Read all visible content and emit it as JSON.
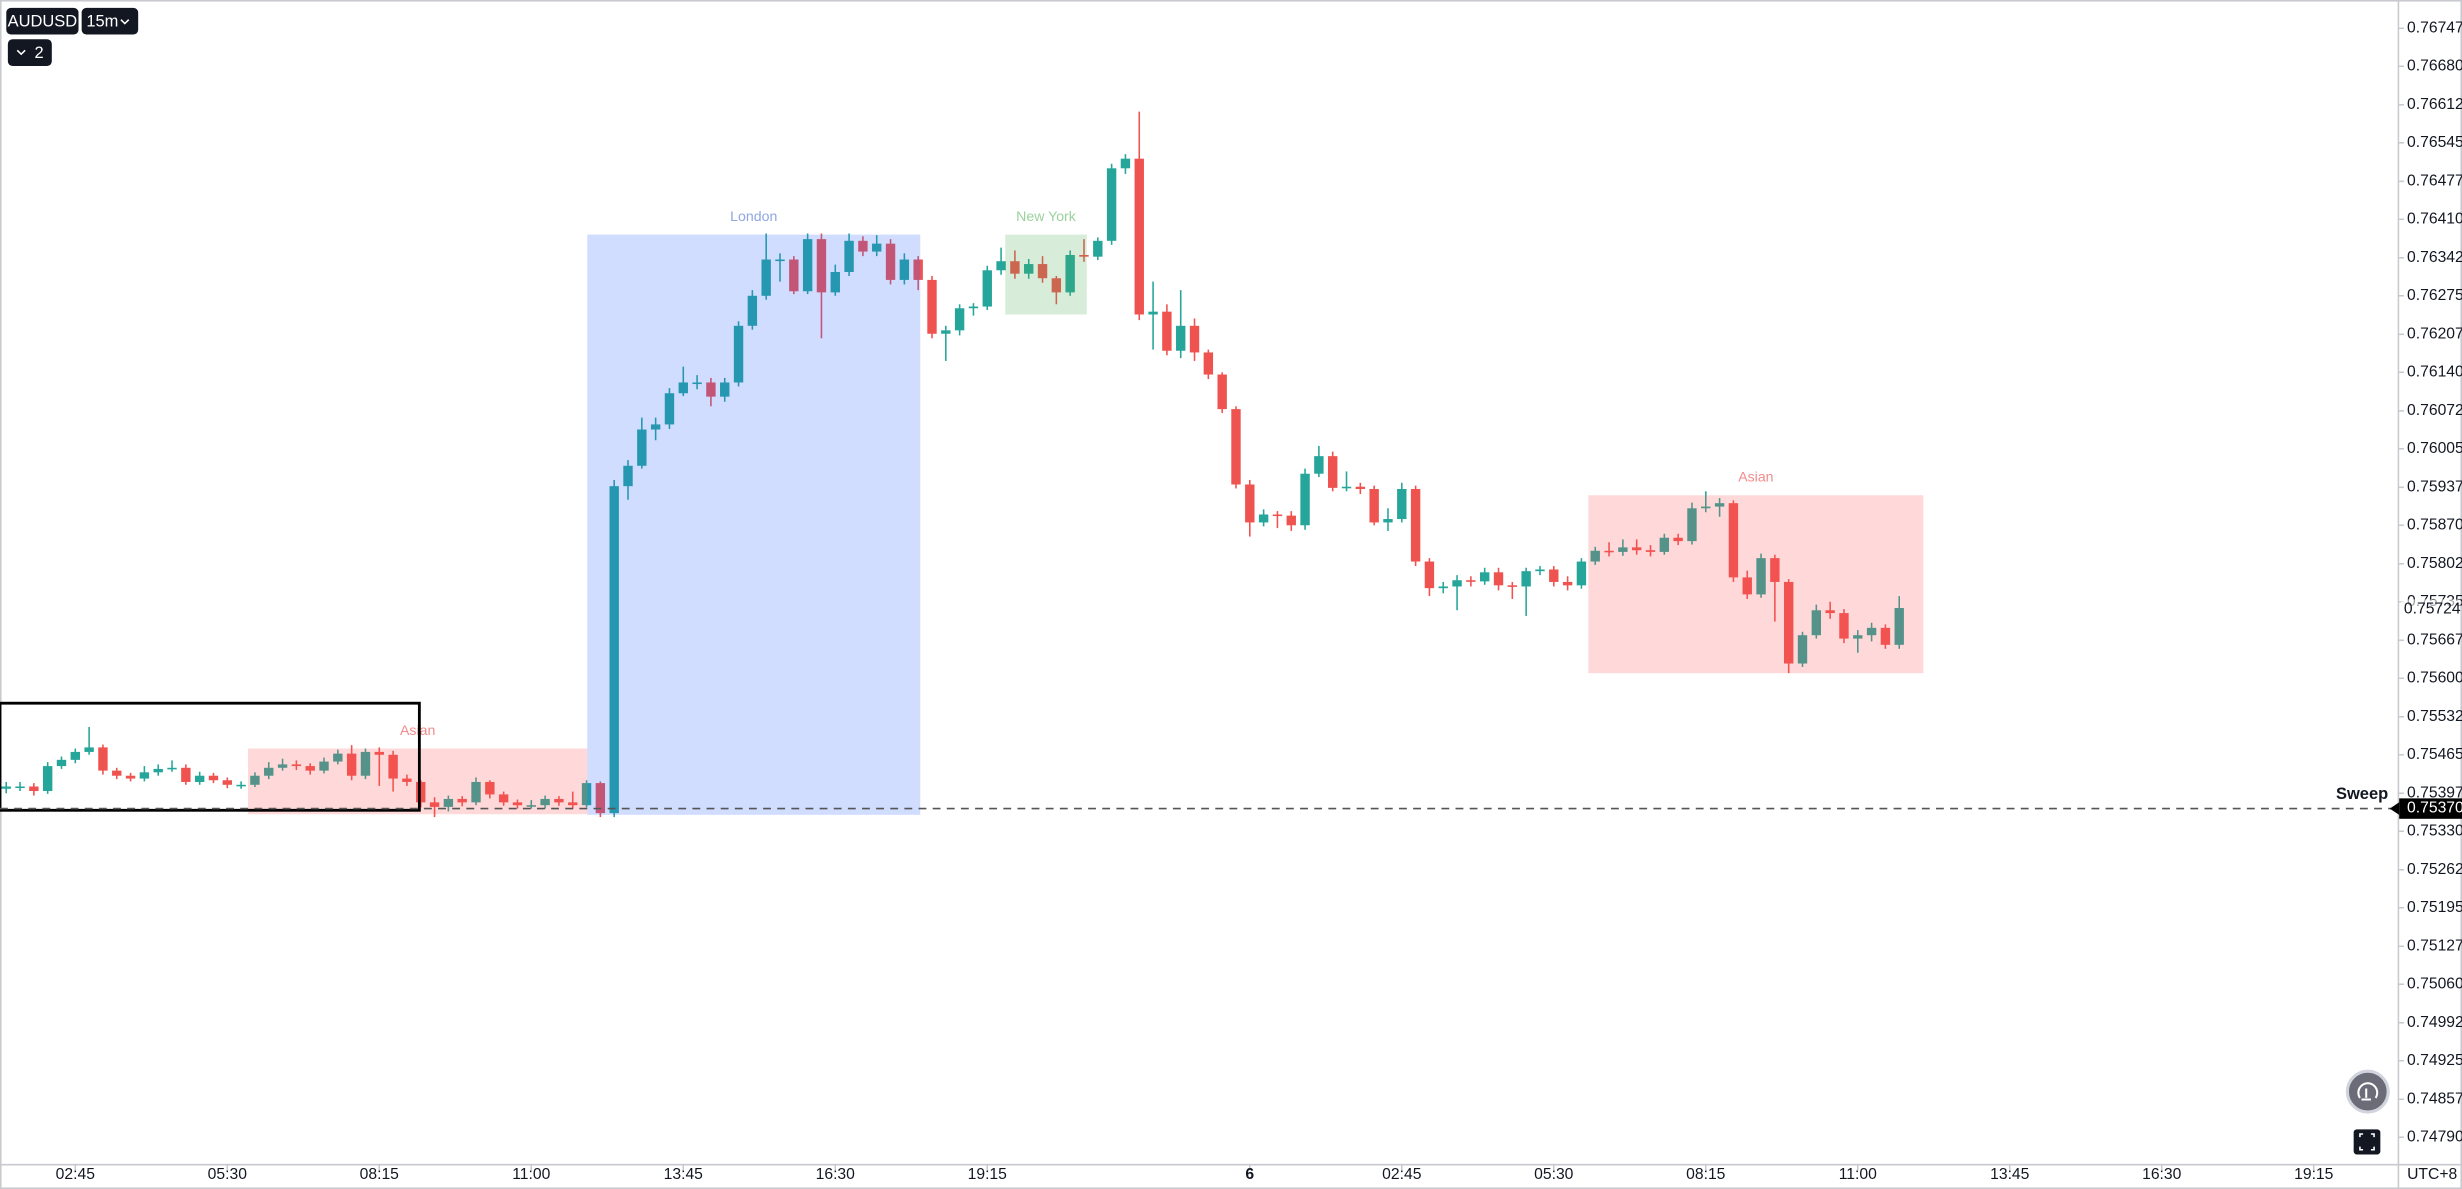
{
  "toolbar": {
    "symbol": "AUDUSD",
    "interval": "15m",
    "indicators": 2
  },
  "chart_data": {
    "type": "candlestick",
    "up_color": "#26a69a",
    "down_color": "#ef5350",
    "xlim": [
      -0.45,
      173.07
    ],
    "ylim": [
      0.74743,
      0.76797
    ],
    "xticks": [
      {
        "value": 5,
        "label": "02:45"
      },
      {
        "value": 16,
        "label": "05:30"
      },
      {
        "value": 27,
        "label": "08:15"
      },
      {
        "value": 38,
        "label": "11:00"
      },
      {
        "value": 49,
        "label": "13:45"
      },
      {
        "value": 60,
        "label": "16:30"
      },
      {
        "value": 71,
        "label": "19:15"
      },
      {
        "value": 90,
        "label": "6"
      },
      {
        "value": 101,
        "label": "02:45"
      },
      {
        "value": 112,
        "label": "05:30"
      },
      {
        "value": 123,
        "label": "08:15"
      },
      {
        "value": 134,
        "label": "11:00"
      },
      {
        "value": 145,
        "label": "13:45"
      },
      {
        "value": 156,
        "label": "16:30"
      },
      {
        "value": 167,
        "label": "19:15"
      }
    ],
    "yticks": [
      0.76747,
      {
        "value": 0.7668,
        "label": "0.76680"
      },
      0.76612,
      0.76545,
      0.76477,
      {
        "value": 0.7641,
        "label": "0.76410"
      },
      0.76342,
      0.76275,
      0.76207,
      {
        "value": 0.7614,
        "label": "0.76140"
      },
      0.76072,
      0.76005,
      0.75937,
      {
        "value": 0.7587,
        "label": "0.75870"
      },
      0.75802,
      0.75735,
      0.75667,
      {
        "value": 0.756,
        "label": "0.75600"
      },
      0.75532,
      0.75465,
      0.75397,
      {
        "value": 0.7533,
        "label": "0.75330"
      },
      0.75262,
      0.75195,
      0.75127,
      {
        "value": 0.7506,
        "label": "0.75060"
      },
      0.74992,
      0.74925,
      0.74857,
      {
        "value": 0.7479,
        "label": "0.74790"
      }
    ],
    "timezone": "UTC+8",
    "last_price": 0.75724,
    "ohlc": [
      [
        0.75405,
        0.75417,
        0.75397,
        0.75409
      ],
      [
        0.75409,
        0.75417,
        0.75401,
        0.75409
      ],
      [
        0.75409,
        0.75415,
        0.75393,
        0.75401
      ],
      [
        0.75401,
        0.75452,
        0.75396,
        0.75445
      ],
      [
        0.75445,
        0.75462,
        0.7544,
        0.75456
      ],
      [
        0.75456,
        0.75476,
        0.7545,
        0.7547
      ],
      [
        0.7547,
        0.75514,
        0.75465,
        0.75478
      ],
      [
        0.75478,
        0.75483,
        0.7543,
        0.75437
      ],
      [
        0.75437,
        0.75442,
        0.75422,
        0.75428
      ],
      [
        0.75428,
        0.75433,
        0.75418,
        0.75423
      ],
      [
        0.75423,
        0.75445,
        0.75418,
        0.75434
      ],
      [
        0.75434,
        0.75448,
        0.75428,
        0.7544
      ],
      [
        0.7544,
        0.75455,
        0.75435,
        0.75442
      ],
      [
        0.75442,
        0.75448,
        0.75412,
        0.75417
      ],
      [
        0.75417,
        0.75435,
        0.75412,
        0.75428
      ],
      [
        0.75428,
        0.75433,
        0.75415,
        0.7542
      ],
      [
        0.7542,
        0.75425,
        0.75406,
        0.75412
      ],
      [
        0.75412,
        0.75418,
        0.75405,
        0.75412
      ],
      [
        0.75412,
        0.75434,
        0.75408,
        0.75428
      ],
      [
        0.75428,
        0.75452,
        0.75422,
        0.75442
      ],
      [
        0.75442,
        0.75458,
        0.75437,
        0.75448
      ],
      [
        0.75448,
        0.75455,
        0.75438,
        0.75445
      ],
      [
        0.75445,
        0.7545,
        0.7543,
        0.75437
      ],
      [
        0.75437,
        0.7546,
        0.75432,
        0.75453
      ],
      [
        0.75453,
        0.75474,
        0.75448,
        0.75467
      ],
      [
        0.75467,
        0.75482,
        0.7542,
        0.75428
      ],
      [
        0.75428,
        0.75476,
        0.75422,
        0.7547
      ],
      [
        0.7547,
        0.75478,
        0.7541,
        0.75465
      ],
      [
        0.75465,
        0.75472,
        0.754,
        0.75423
      ],
      [
        0.75423,
        0.7543,
        0.7541,
        0.75417
      ],
      [
        0.75417,
        0.7542,
        0.75372,
        0.75381
      ],
      [
        0.75381,
        0.7539,
        0.75355,
        0.75373
      ],
      [
        0.75373,
        0.75393,
        0.75365,
        0.75387
      ],
      [
        0.75387,
        0.75392,
        0.75374,
        0.75381
      ],
      [
        0.75381,
        0.75425,
        0.75376,
        0.75417
      ],
      [
        0.75417,
        0.7542,
        0.75388,
        0.75395
      ],
      [
        0.75395,
        0.754,
        0.75375,
        0.75381
      ],
      [
        0.75381,
        0.75386,
        0.7537,
        0.75376
      ],
      [
        0.75376,
        0.75385,
        0.7537,
        0.75376
      ],
      [
        0.75376,
        0.75393,
        0.7537,
        0.75387
      ],
      [
        0.75387,
        0.75392,
        0.75375,
        0.75381
      ],
      [
        0.75381,
        0.754,
        0.7537,
        0.75376
      ],
      [
        0.75376,
        0.7542,
        0.75372,
        0.75415
      ],
      [
        0.75415,
        0.75418,
        0.75355,
        0.75362
      ],
      [
        0.75362,
        0.7595,
        0.75355,
        0.75939
      ],
      [
        0.75939,
        0.75985,
        0.75915,
        0.75975
      ],
      [
        0.75975,
        0.7606,
        0.7597,
        0.76039
      ],
      [
        0.76039,
        0.7606,
        0.7602,
        0.76048
      ],
      [
        0.76048,
        0.76112,
        0.7604,
        0.76103
      ],
      [
        0.76103,
        0.7615,
        0.76098,
        0.76122
      ],
      [
        0.76122,
        0.76135,
        0.7611,
        0.76122
      ],
      [
        0.76122,
        0.7613,
        0.7608,
        0.76097
      ],
      [
        0.76097,
        0.7613,
        0.76088,
        0.76122
      ],
      [
        0.76122,
        0.7623,
        0.76115,
        0.76222
      ],
      [
        0.76222,
        0.76285,
        0.76215,
        0.76275
      ],
      [
        0.76275,
        0.76385,
        0.76268,
        0.76339
      ],
      [
        0.76339,
        0.7635,
        0.763,
        0.76339
      ],
      [
        0.76339,
        0.76345,
        0.76278,
        0.76283
      ],
      [
        0.76283,
        0.76385,
        0.76278,
        0.76375
      ],
      [
        0.76375,
        0.76385,
        0.762,
        0.76281
      ],
      [
        0.76281,
        0.7633,
        0.76275,
        0.76317
      ],
      [
        0.76317,
        0.76385,
        0.7631,
        0.76372
      ],
      [
        0.76372,
        0.7638,
        0.76345,
        0.76353
      ],
      [
        0.76353,
        0.76382,
        0.76345,
        0.76367
      ],
      [
        0.76367,
        0.76375,
        0.76295,
        0.76303
      ],
      [
        0.76303,
        0.7635,
        0.76295,
        0.76339
      ],
      [
        0.76339,
        0.76345,
        0.76285,
        0.76303
      ],
      [
        0.76303,
        0.7631,
        0.762,
        0.76208
      ],
      [
        0.76208,
        0.76222,
        0.7616,
        0.76214
      ],
      [
        0.76214,
        0.7626,
        0.76205,
        0.76253
      ],
      [
        0.76253,
        0.76262,
        0.7624,
        0.76256
      ],
      [
        0.76256,
        0.76328,
        0.7625,
        0.7632
      ],
      [
        0.7632,
        0.7636,
        0.76312,
        0.76336
      ],
      [
        0.76336,
        0.76355,
        0.76305,
        0.76314
      ],
      [
        0.76314,
        0.7634,
        0.76305,
        0.76331
      ],
      [
        0.76331,
        0.76345,
        0.76298,
        0.76306
      ],
      [
        0.76306,
        0.7631,
        0.7626,
        0.76281
      ],
      [
        0.76281,
        0.76355,
        0.76275,
        0.76347
      ],
      [
        0.76347,
        0.76375,
        0.76335,
        0.76344
      ],
      [
        0.76344,
        0.76378,
        0.76338,
        0.76372
      ],
      [
        0.76372,
        0.76508,
        0.76365,
        0.765
      ],
      [
        0.765,
        0.76525,
        0.7649,
        0.76517
      ],
      [
        0.76517,
        0.766,
        0.76232,
        0.76242
      ],
      [
        0.76242,
        0.763,
        0.7618,
        0.76247
      ],
      [
        0.76247,
        0.7626,
        0.7617,
        0.76178
      ],
      [
        0.76178,
        0.76285,
        0.76165,
        0.76222
      ],
      [
        0.76222,
        0.76235,
        0.7616,
        0.76175
      ],
      [
        0.76175,
        0.7618,
        0.76128,
        0.76136
      ],
      [
        0.76136,
        0.7614,
        0.76068,
        0.76075
      ],
      [
        0.76075,
        0.7608,
        0.75935,
        0.75942
      ],
      [
        0.75942,
        0.7595,
        0.7585,
        0.75875
      ],
      [
        0.75875,
        0.75898,
        0.75868,
        0.75889
      ],
      [
        0.75889,
        0.75895,
        0.75865,
        0.75887
      ],
      [
        0.75887,
        0.75895,
        0.7586,
        0.7587
      ],
      [
        0.7587,
        0.7597,
        0.75862,
        0.75961
      ],
      [
        0.75961,
        0.7601,
        0.75955,
        0.75992
      ],
      [
        0.75992,
        0.76,
        0.7593,
        0.75936
      ],
      [
        0.75936,
        0.75965,
        0.7593,
        0.75938
      ],
      [
        0.75938,
        0.75945,
        0.75925,
        0.75934
      ],
      [
        0.75934,
        0.7594,
        0.7587,
        0.75875
      ],
      [
        0.75875,
        0.759,
        0.7586,
        0.75881
      ],
      [
        0.75881,
        0.75945,
        0.75875,
        0.75934
      ],
      [
        0.75934,
        0.7594,
        0.75798,
        0.75806
      ],
      [
        0.75806,
        0.75812,
        0.75745,
        0.75759
      ],
      [
        0.75759,
        0.7577,
        0.7575,
        0.75762
      ],
      [
        0.75762,
        0.75782,
        0.7572,
        0.75773
      ],
      [
        0.75773,
        0.7578,
        0.75762,
        0.75771
      ],
      [
        0.75771,
        0.75795,
        0.75765,
        0.75787
      ],
      [
        0.75787,
        0.75795,
        0.75755,
        0.75764
      ],
      [
        0.75764,
        0.7577,
        0.7574,
        0.75762
      ],
      [
        0.75762,
        0.75795,
        0.7571,
        0.75789
      ],
      [
        0.75789,
        0.75798,
        0.75782,
        0.75792
      ],
      [
        0.75792,
        0.75798,
        0.75762,
        0.7577
      ],
      [
        0.7577,
        0.7578,
        0.75755,
        0.75764
      ],
      [
        0.75764,
        0.75812,
        0.75758,
        0.75806
      ],
      [
        0.75806,
        0.75832,
        0.758,
        0.75825
      ],
      [
        0.75825,
        0.7584,
        0.75815,
        0.75823
      ],
      [
        0.75823,
        0.75845,
        0.75816,
        0.75831
      ],
      [
        0.75831,
        0.75845,
        0.75818,
        0.75826
      ],
      [
        0.75826,
        0.75835,
        0.75815,
        0.75823
      ],
      [
        0.75823,
        0.75855,
        0.75818,
        0.75848
      ],
      [
        0.75848,
        0.75855,
        0.75835,
        0.75842
      ],
      [
        0.75842,
        0.7591,
        0.75836,
        0.759
      ],
      [
        0.759,
        0.7593,
        0.75893,
        0.75903
      ],
      [
        0.75903,
        0.75918,
        0.75885,
        0.75909
      ],
      [
        0.75909,
        0.75914,
        0.7577,
        0.75778
      ],
      [
        0.75778,
        0.7579,
        0.7574,
        0.75748
      ],
      [
        0.75748,
        0.7582,
        0.75742,
        0.75812
      ],
      [
        0.75812,
        0.75818,
        0.757,
        0.7577
      ],
      [
        0.7577,
        0.75775,
        0.75609,
        0.75626
      ],
      [
        0.75626,
        0.75682,
        0.7562,
        0.75676
      ],
      [
        0.75676,
        0.7573,
        0.7567,
        0.7572
      ],
      [
        0.7572,
        0.75735,
        0.75705,
        0.75715
      ],
      [
        0.75715,
        0.75722,
        0.75662,
        0.7567
      ],
      [
        0.7567,
        0.75685,
        0.75645,
        0.75676
      ],
      [
        0.75676,
        0.75698,
        0.75665,
        0.75689
      ],
      [
        0.75689,
        0.75695,
        0.75652,
        0.75659
      ],
      [
        0.75659,
        0.75745,
        0.75652,
        0.75724
      ]
    ],
    "boxes": [
      {
        "label": "Asian",
        "x": [
          17.5,
          42.05
        ],
        "y": [
          0.7536,
          0.75476
        ],
        "color": "#ff5252",
        "text_color": "#f28b8b"
      },
      {
        "label": "London",
        "x": [
          42.05,
          66.15
        ],
        "y": [
          0.75359,
          0.76383
        ],
        "color": "#2962ff",
        "text_color": "#8fa6e0"
      },
      {
        "label": "New York",
        "x": [
          72.3,
          78.2
        ],
        "y": [
          0.76242,
          0.76383
        ],
        "color": "#4caf50",
        "text_color": "#9ad29d"
      },
      {
        "label": "Asian",
        "x": [
          114.5,
          138.75
        ],
        "y": [
          0.75609,
          0.75923
        ],
        "color": "#ff5252",
        "text_color": "#f28b8b"
      }
    ],
    "outline_box": {
      "x": [
        -0.45,
        29.9
      ],
      "y": [
        0.75367,
        0.75556
      ],
      "color": "#000000"
    },
    "hline": {
      "label": "Sweep",
      "value": 0.7537,
      "value_label": "0.75370",
      "color": "#555555"
    }
  }
}
